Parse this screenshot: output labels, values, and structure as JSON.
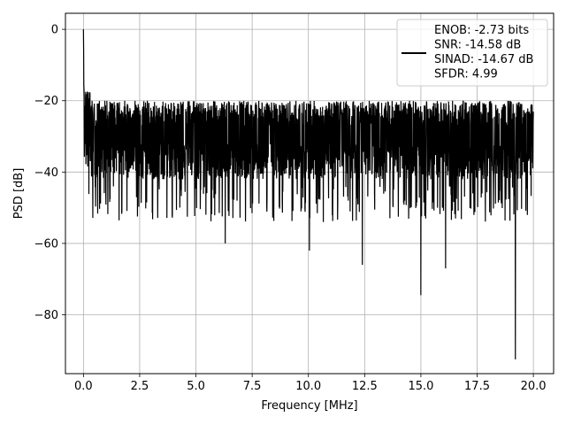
{
  "chart_data": {
    "type": "line",
    "title": "",
    "xlabel": "Frequency [MHz]",
    "ylabel": "PSD [dB]",
    "xlim": [
      -0.8,
      20.9
    ],
    "ylim": [
      -96.5,
      4.5
    ],
    "xticks": [
      0,
      2.5,
      5,
      7.5,
      10,
      12.5,
      15,
      17.5,
      20
    ],
    "xtick_labels": [
      "0.0",
      "2.5",
      "5.0",
      "7.5",
      "10.0",
      "12.5",
      "15.0",
      "17.5",
      "20.0"
    ],
    "yticks": [
      0,
      -20,
      -40,
      -60,
      -80
    ],
    "ytick_labels": [
      "0",
      "−20",
      "−40",
      "−60",
      "−80"
    ],
    "grid": true,
    "legend_placement": "top-right",
    "line_color": "#000000",
    "x_range": [
      0,
      20
    ],
    "peak": {
      "x": 0.0,
      "y": 0
    },
    "noise_floor": {
      "upper_envelope": -23,
      "typical_low": -42
    },
    "notable_dips": [
      {
        "x": 6.3,
        "y": -60
      },
      {
        "x": 10.05,
        "y": -62
      },
      {
        "x": 12.4,
        "y": -66
      },
      {
        "x": 15.0,
        "y": -74.5
      },
      {
        "x": 16.1,
        "y": -67
      },
      {
        "x": 19.2,
        "y": -92.5
      }
    ],
    "series": [
      {
        "name": "ENOB: -2.73 bits\nSNR: -14.58 dB\nSINAD: -14.67 dB\nSFDR: 4.99"
      }
    ],
    "legend_lines": [
      "ENOB: -2.73 bits",
      "SNR: -14.58 dB",
      "SINAD: -14.67 dB",
      "SFDR: 4.99"
    ]
  }
}
